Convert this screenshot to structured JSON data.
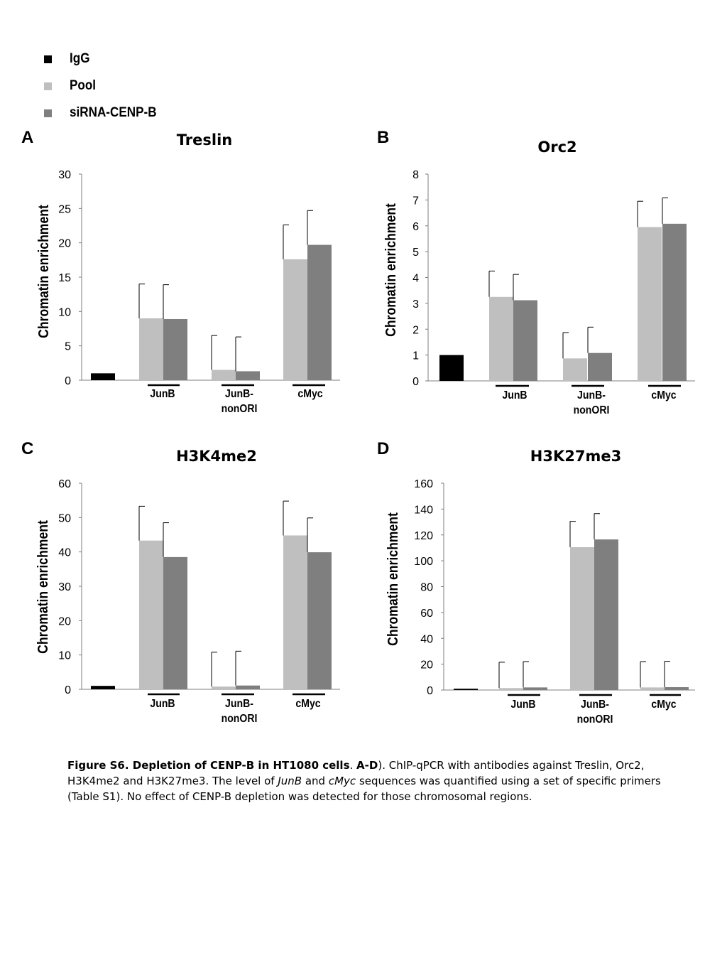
{
  "legend": [
    {
      "label": "IgG",
      "color": "#000000"
    },
    {
      "label": "Pool",
      "color": "#bfbfbf"
    },
    {
      "label": "siRNA-CENP-B",
      "color": "#7f7f7f"
    }
  ],
  "chart_data": [
    {
      "panel": "A",
      "type": "bar",
      "title": "Treslin",
      "ylabel": "Chromatin enrichment",
      "ylim": [
        0,
        30
      ],
      "yticks": [
        0,
        5,
        10,
        15,
        20,
        25,
        30
      ],
      "categories": [
        "",
        "JunB",
        "JunB-\nnonORI",
        "cMyc"
      ],
      "series": [
        {
          "name": "IgG",
          "values": [
            1.0,
            null,
            null,
            null
          ],
          "errors": [
            null,
            null,
            null,
            null
          ]
        },
        {
          "name": "Pool",
          "values": [
            null,
            9.0,
            1.5,
            17.6
          ],
          "errors": [
            null,
            5.0,
            5.0,
            5.0
          ]
        },
        {
          "name": "siRNA-CENP-B",
          "values": [
            null,
            8.9,
            1.3,
            19.7
          ],
          "errors": [
            null,
            5.0,
            5.0,
            5.0
          ]
        }
      ]
    },
    {
      "panel": "B",
      "type": "bar",
      "title": "Orc2",
      "ylabel": "Chromatin enrichment",
      "ylim": [
        0,
        8
      ],
      "yticks": [
        0,
        1,
        2,
        3,
        4,
        5,
        6,
        7,
        8
      ],
      "categories": [
        "",
        "JunB",
        "JunB-\nnonORI",
        "cMyc"
      ],
      "series": [
        {
          "name": "IgG",
          "values": [
            1.0,
            null,
            null,
            null
          ],
          "errors": [
            null,
            null,
            null,
            null
          ]
        },
        {
          "name": "Pool",
          "values": [
            null,
            3.25,
            0.87,
            5.95
          ],
          "errors": [
            null,
            1.0,
            1.0,
            1.0
          ]
        },
        {
          "name": "siRNA-CENP-B",
          "values": [
            null,
            3.12,
            1.08,
            6.08
          ],
          "errors": [
            null,
            1.0,
            1.0,
            1.0
          ]
        }
      ]
    },
    {
      "panel": "C",
      "type": "bar",
      "title": "H3K4me2",
      "ylabel": "Chromatin enrichment",
      "ylim": [
        0,
        60
      ],
      "yticks": [
        0,
        10,
        20,
        30,
        40,
        50,
        60
      ],
      "categories": [
        "",
        "JunB",
        "JunB-\nnonORI",
        "cMyc"
      ],
      "series": [
        {
          "name": "IgG",
          "values": [
            1.0,
            null,
            null,
            null
          ],
          "errors": [
            null,
            null,
            null,
            null
          ]
        },
        {
          "name": "Pool",
          "values": [
            null,
            43.3,
            0.8,
            44.8
          ],
          "errors": [
            null,
            10.0,
            10.0,
            10.0
          ]
        },
        {
          "name": "siRNA-CENP-B",
          "values": [
            null,
            38.5,
            1.1,
            39.9
          ],
          "errors": [
            null,
            10.0,
            10.0,
            10.0
          ]
        }
      ]
    },
    {
      "panel": "D",
      "type": "bar",
      "title": "H3K27me3",
      "ylabel": "Chromatin enrichment",
      "ylim": [
        0,
        160
      ],
      "yticks": [
        0,
        20,
        40,
        60,
        80,
        100,
        120,
        140,
        160
      ],
      "categories": [
        "",
        "JunB",
        "JunB-\nnonORI",
        "cMyc"
      ],
      "series": [
        {
          "name": "IgG",
          "values": [
            1.0,
            null,
            null,
            null
          ],
          "errors": [
            null,
            null,
            null,
            null
          ]
        },
        {
          "name": "Pool",
          "values": [
            null,
            1.5,
            110.5,
            2.0
          ],
          "errors": [
            null,
            20.0,
            20.0,
            20.0
          ]
        },
        {
          "name": "siRNA-CENP-B",
          "values": [
            null,
            2.0,
            116.5,
            2.2
          ],
          "errors": [
            null,
            20.0,
            20.0,
            20.0
          ]
        }
      ]
    }
  ],
  "caption": {
    "bold1": "Figure S6. Depletion of CENP-B in HT1080 cells",
    "sep1": ". ",
    "bold2": "A-D",
    "t1": "). ChIP-qPCR with antibodies against Treslin, Orc2, H3K4me2 and H3K27me3. The level of ",
    "i1": "JunB",
    "t2": " and ",
    "i2": "cMyc",
    "t3": " sequences was quantified using a set of specific primers (Table S1). No effect of CENP-B depletion was detected for those chromosomal regions."
  }
}
